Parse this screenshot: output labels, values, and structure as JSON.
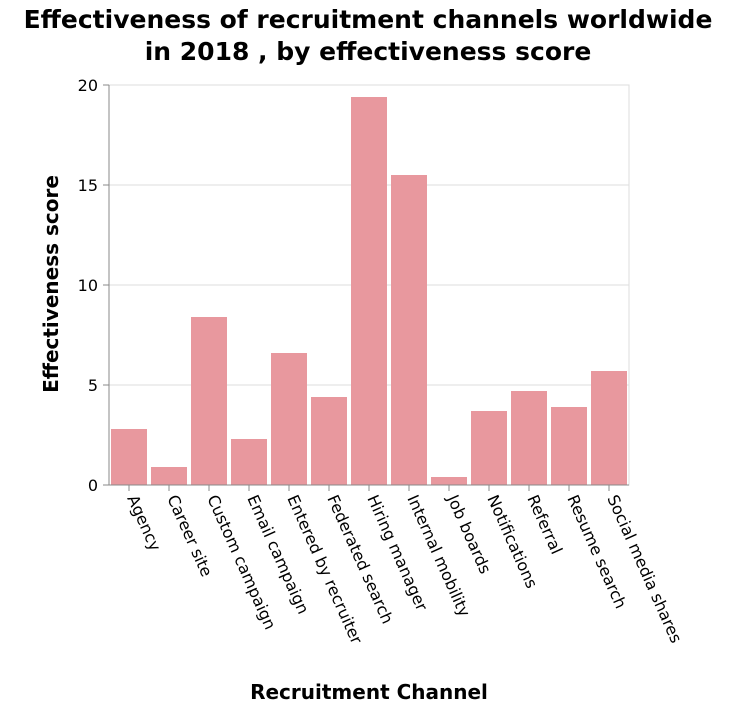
{
  "chart_data": {
    "type": "bar",
    "title_lines": [
      "Effectiveness of recruitment channels worldwide",
      "in 2018 , by effectiveness score"
    ],
    "xlabel": "Recruitment Channel",
    "ylabel": "Effectiveness score",
    "ylim": [
      0,
      20
    ],
    "yticks": [
      "0",
      "5",
      "10",
      "15",
      "20"
    ],
    "grid": true,
    "bar_color": "#e8989e",
    "categories": [
      "Agency",
      "Career site",
      "Custom campaign",
      "Email campaign",
      "Entered by recruiter",
      "Federated search",
      "Hiring manager",
      "Internal mobility",
      "Job boards",
      "Notifications",
      "Referral",
      "Resume search",
      "Social media shares"
    ],
    "values": [
      2.8,
      0.9,
      8.4,
      2.3,
      6.6,
      4.4,
      19.4,
      15.5,
      0.4,
      3.7,
      4.7,
      3.9,
      5.7
    ]
  }
}
